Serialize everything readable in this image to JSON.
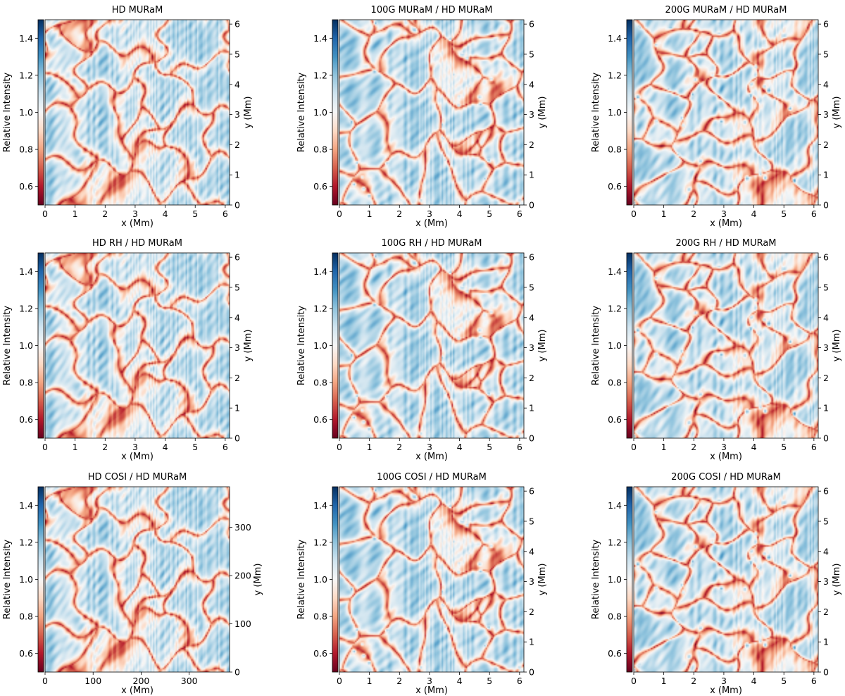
{
  "chart_data": {
    "type": "heatmap",
    "colormap": "RdBu",
    "colorbar": {
      "label": "Relative Intensity",
      "range": [
        0.5,
        1.5
      ],
      "ticks": [
        0.6,
        0.8,
        1.0,
        1.2,
        1.4
      ],
      "tick_labels": [
        "0.6",
        "0.8",
        "1.0",
        "1.2",
        "1.4"
      ]
    },
    "panels": [
      {
        "title": "HD MURaM",
        "xlabel": "x (Mm)",
        "ylabel": "y (Mm)",
        "xlim": [
          0,
          6.144
        ],
        "ylim": [
          0,
          6.144
        ],
        "xticks": [
          0,
          1,
          2,
          3,
          4,
          5,
          6
        ],
        "xtick_labels": [
          "0",
          "1",
          "2",
          "3",
          "4",
          "5",
          "6"
        ],
        "yticks": [
          0,
          1,
          2,
          3,
          4,
          5,
          6
        ],
        "ytick_labels": [
          "0",
          "1",
          "2",
          "3",
          "4",
          "5",
          "6"
        ],
        "field_seed": 1,
        "field": "hd"
      },
      {
        "title": "100G MURaM / HD MURaM",
        "xlabel": "x (Mm)",
        "ylabel": "y (Mm)",
        "xlim": [
          0,
          6.144
        ],
        "ylim": [
          0,
          6.144
        ],
        "xticks": [
          0,
          1,
          2,
          3,
          4,
          5,
          6
        ],
        "xtick_labels": [
          "0",
          "1",
          "2",
          "3",
          "4",
          "5",
          "6"
        ],
        "yticks": [
          0,
          1,
          2,
          3,
          4,
          5,
          6
        ],
        "ytick_labels": [
          "0",
          "1",
          "2",
          "3",
          "4",
          "5",
          "6"
        ],
        "field_seed": 2,
        "field": "mag"
      },
      {
        "title": "200G MURaM / HD MURaM",
        "xlabel": "x (Mm)",
        "ylabel": "y (Mm)",
        "xlim": [
          0,
          6.144
        ],
        "ylim": [
          0,
          6.144
        ],
        "xticks": [
          0,
          1,
          2,
          3,
          4,
          5,
          6
        ],
        "xtick_labels": [
          "0",
          "1",
          "2",
          "3",
          "4",
          "5",
          "6"
        ],
        "yticks": [
          0,
          1,
          2,
          3,
          4,
          5,
          6
        ],
        "ytick_labels": [
          "0",
          "1",
          "2",
          "3",
          "4",
          "5",
          "6"
        ],
        "field_seed": 3,
        "field": "mag"
      },
      {
        "title": "HD RH / HD MURaM",
        "xlabel": "x (Mm)",
        "ylabel": "y (Mm)",
        "xlim": [
          0,
          6.144
        ],
        "ylim": [
          0,
          6.144
        ],
        "xticks": [
          0,
          1,
          2,
          3,
          4,
          5,
          6
        ],
        "xtick_labels": [
          "0",
          "1",
          "2",
          "3",
          "4",
          "5",
          "6"
        ],
        "yticks": [
          0,
          1,
          2,
          3,
          4,
          5,
          6
        ],
        "ytick_labels": [
          "0",
          "1",
          "2",
          "3",
          "4",
          "5",
          "6"
        ],
        "field_seed": 1,
        "field": "hd"
      },
      {
        "title": "100G RH / HD MURaM",
        "xlabel": "x (Mm)",
        "ylabel": "y (Mm)",
        "xlim": [
          0,
          6.144
        ],
        "ylim": [
          0,
          6.144
        ],
        "xticks": [
          0,
          1,
          2,
          3,
          4,
          5,
          6
        ],
        "xtick_labels": [
          "0",
          "1",
          "2",
          "3",
          "4",
          "5",
          "6"
        ],
        "yticks": [
          0,
          1,
          2,
          3,
          4,
          5,
          6
        ],
        "ytick_labels": [
          "0",
          "1",
          "2",
          "3",
          "4",
          "5",
          "6"
        ],
        "field_seed": 2,
        "field": "mag"
      },
      {
        "title": "200G RH / HD MURaM",
        "xlabel": "x (Mm)",
        "ylabel": "y (Mm)",
        "xlim": [
          0,
          6.144
        ],
        "ylim": [
          0,
          6.144
        ],
        "xticks": [
          0,
          1,
          2,
          3,
          4,
          5,
          6
        ],
        "xtick_labels": [
          "0",
          "1",
          "2",
          "3",
          "4",
          "5",
          "6"
        ],
        "yticks": [
          0,
          1,
          2,
          3,
          4,
          5,
          6
        ],
        "ytick_labels": [
          "0",
          "1",
          "2",
          "3",
          "4",
          "5",
          "6"
        ],
        "field_seed": 3,
        "field": "mag"
      },
      {
        "title": "HD COSI / HD MURaM",
        "xlabel": "x (Mm)",
        "ylabel": "y (Mm)",
        "xlim": [
          0,
          384
        ],
        "ylim": [
          0,
          384
        ],
        "xticks": [
          0,
          100,
          200,
          300
        ],
        "xtick_labels": [
          "0",
          "100",
          "200",
          "300"
        ],
        "yticks": [
          0,
          100,
          200,
          300
        ],
        "ytick_labels": [
          "0",
          "100",
          "200",
          "300"
        ],
        "field_seed": 1,
        "field": "hd"
      },
      {
        "title": "100G COSI / HD MURaM",
        "xlabel": "x (Mm)",
        "ylabel": "y (Mm)",
        "xlim": [
          0,
          6.144
        ],
        "ylim": [
          0,
          6.144
        ],
        "xticks": [
          0,
          1,
          2,
          3,
          4,
          5,
          6
        ],
        "xtick_labels": [
          "0",
          "1",
          "2",
          "3",
          "4",
          "5",
          "6"
        ],
        "yticks": [
          0,
          1,
          2,
          3,
          4,
          5,
          6
        ],
        "ytick_labels": [
          "0",
          "1",
          "2",
          "3",
          "4",
          "5",
          "6"
        ],
        "field_seed": 2,
        "field": "mag"
      },
      {
        "title": "200G COSI / HD MURaM",
        "xlabel": "x (Mm)",
        "ylabel": "y (Mm)",
        "xlim": [
          0,
          6.144
        ],
        "ylim": [
          0,
          6.144
        ],
        "xticks": [
          0,
          1,
          2,
          3,
          4,
          5,
          6
        ],
        "xtick_labels": [
          "0",
          "1",
          "2",
          "3",
          "4",
          "5",
          "6"
        ],
        "yticks": [
          0,
          1,
          2,
          3,
          4,
          5,
          6
        ],
        "ytick_labels": [
          "0",
          "1",
          "2",
          "3",
          "4",
          "5",
          "6"
        ],
        "field_seed": 3,
        "field": "mag"
      }
    ]
  }
}
